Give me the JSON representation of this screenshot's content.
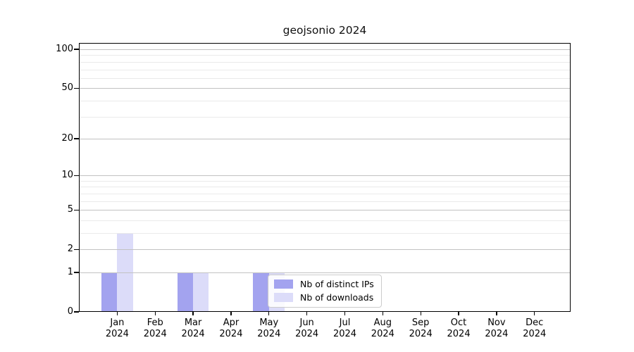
{
  "title": "geojsonio 2024",
  "legend": {
    "items": [
      {
        "label": "Nb of distinct IPs",
        "color": "#a3a3ef"
      },
      {
        "label": "Nb of downloads",
        "color": "#dcdcf9"
      }
    ]
  },
  "chart_data": {
    "type": "bar",
    "title": "geojsonio 2024",
    "categories": [
      "Jan",
      "Feb",
      "Mar",
      "Apr",
      "May",
      "Jun",
      "Jul",
      "Aug",
      "Sep",
      "Oct",
      "Nov",
      "Dec"
    ],
    "year_label": "2024",
    "series": [
      {
        "name": "Nb of distinct IPs",
        "color": "#a3a3ef",
        "values": [
          1,
          0,
          1,
          0,
          1,
          0,
          0,
          0,
          0,
          0,
          0,
          0
        ]
      },
      {
        "name": "Nb of downloads",
        "color": "#dcdcf9",
        "values": [
          3,
          0,
          1,
          0,
          1,
          0,
          0,
          0,
          0,
          0,
          0,
          0
        ]
      }
    ],
    "yscale": "log10(1+y)",
    "ylim": [
      0,
      112
    ],
    "yticks": [
      0,
      1,
      2,
      5,
      10,
      20,
      50,
      100
    ],
    "minor_yticks": [
      3,
      4,
      6,
      7,
      8,
      9,
      30,
      40,
      60,
      70,
      80,
      90
    ],
    "xlabel": "",
    "ylabel": "",
    "grid": true,
    "legend_position": "lower center-right inside plot"
  },
  "colors": {
    "background": "#ffffff",
    "axis": "#000000",
    "major_grid": "#c2c2c2",
    "minor_grid": "#eaeaea"
  }
}
